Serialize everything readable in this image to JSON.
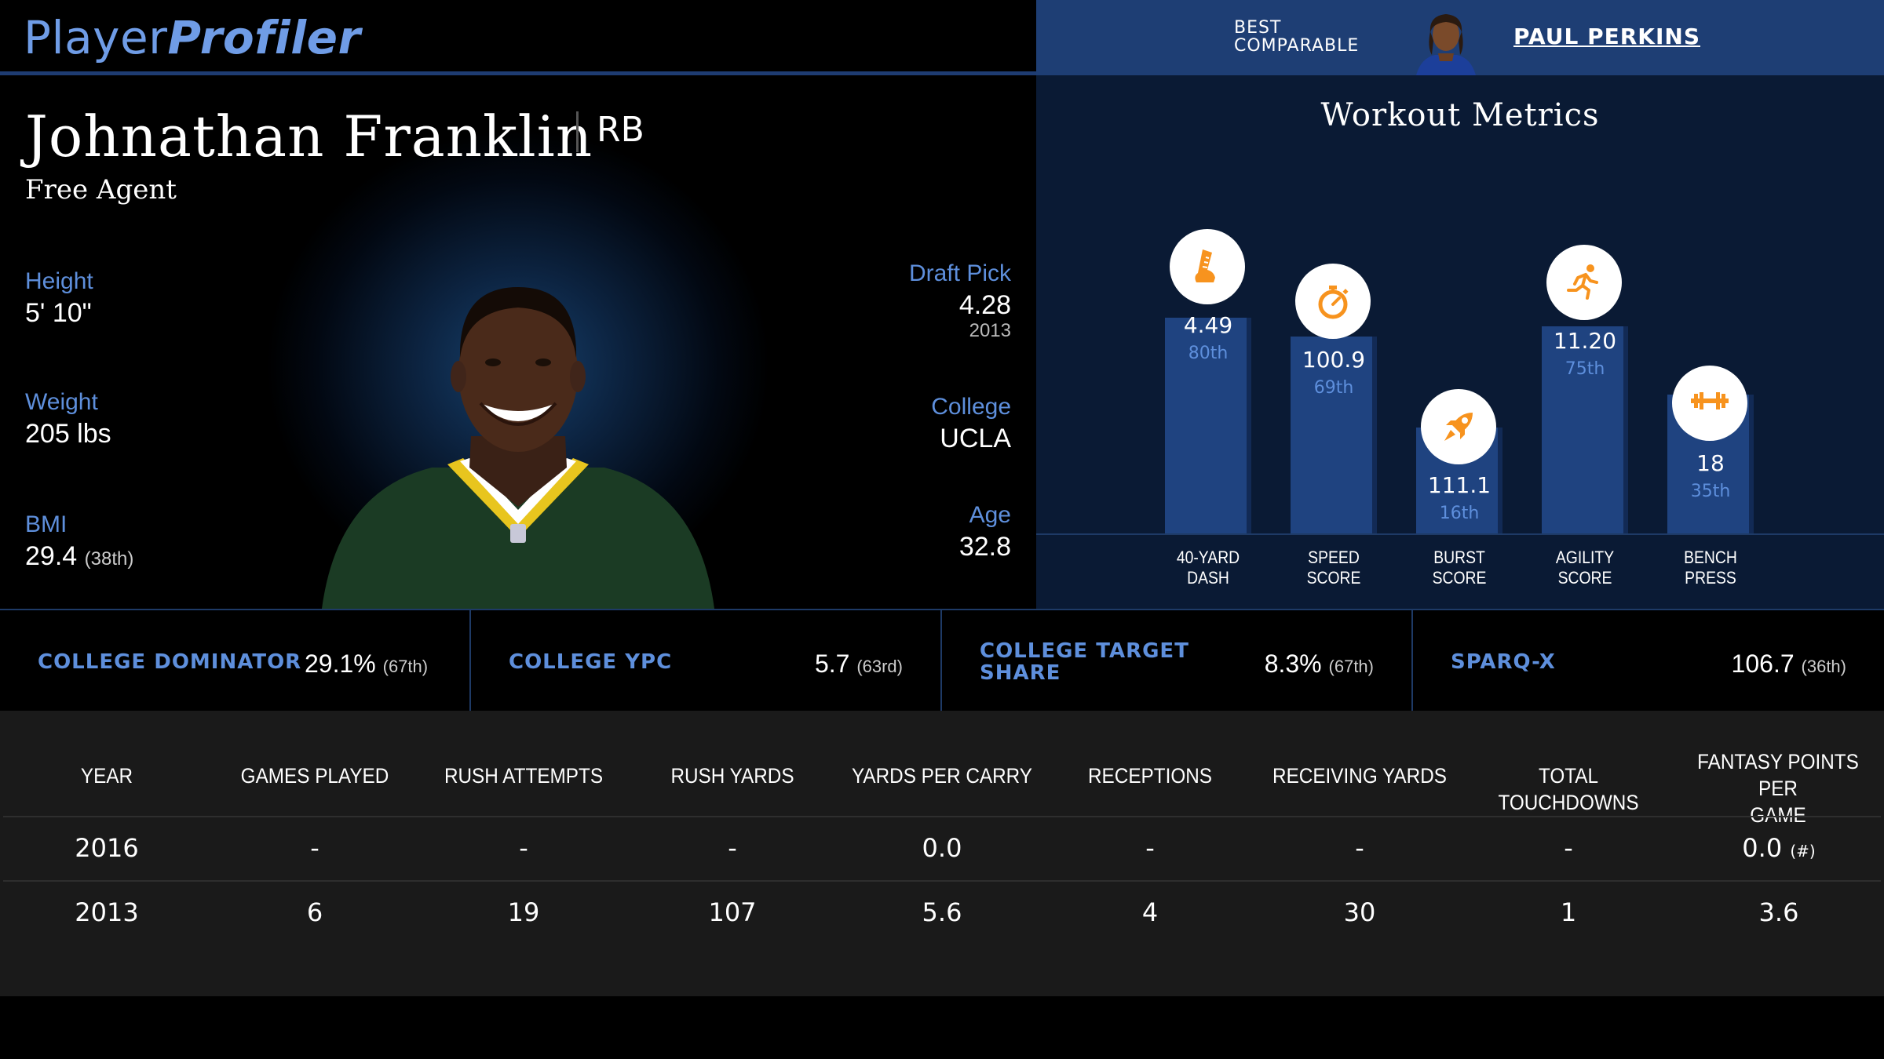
{
  "header": {
    "logo_part1": "Player",
    "logo_part2": "Profiler",
    "best_comparable_line1": "BEST",
    "best_comparable_line2": "COMPARABLE",
    "comparable_name": "PAUL PERKINS"
  },
  "player": {
    "name": "Johnathan Franklin",
    "position": "RB",
    "team": "Free Agent",
    "height_label": "Height",
    "height_value": "5' 10\"",
    "weight_label": "Weight",
    "weight_value": "205 lbs",
    "bmi_label": "BMI",
    "bmi_value": "29.4",
    "bmi_rank": "(38th)",
    "draft_label": "Draft Pick",
    "draft_value": "4.28",
    "draft_year": "2013",
    "college_label": "College",
    "college_value": "UCLA",
    "age_label": "Age",
    "age_value": "32.8"
  },
  "workout": {
    "title": "Workout Metrics",
    "items": [
      {
        "label1": "40-YARD",
        "label2": "DASH",
        "value": "4.49",
        "pct": "80th",
        "percentile": 80,
        "icon": "running-shoe-icon"
      },
      {
        "label1": "SPEED",
        "label2": "SCORE",
        "value": "100.9",
        "pct": "69th",
        "percentile": 69,
        "icon": "stopwatch-icon"
      },
      {
        "label1": "BURST",
        "label2": "SCORE",
        "value": "111.1",
        "pct": "16th",
        "percentile": 16,
        "icon": "rocket-icon"
      },
      {
        "label1": "AGILITY",
        "label2": "SCORE",
        "value": "11.20",
        "pct": "75th",
        "percentile": 75,
        "icon": "running-man-icon"
      },
      {
        "label1": "BENCH",
        "label2": "PRESS",
        "value": "18",
        "pct": "35th",
        "percentile": 35,
        "icon": "dumbbell-icon"
      }
    ],
    "accent_color": "#f7931e"
  },
  "metrics": [
    {
      "label_line1": "COLLEGE DOMINATOR",
      "label_line2": "",
      "value": "29.1%",
      "rank": "(67th)"
    },
    {
      "label_line1": "COLLEGE YPC",
      "label_line2": "",
      "value": "5.7",
      "rank": "(63rd)"
    },
    {
      "label_line1": "COLLEGE TARGET",
      "label_line2": "SHARE",
      "value": "8.3%",
      "rank": "(67th)"
    },
    {
      "label_line1": "SPARQ-X",
      "label_line2": "",
      "value": "106.7",
      "rank": "(36th)"
    }
  ],
  "table": {
    "headers": [
      "YEAR",
      "GAMES PLAYED",
      "RUSH ATTEMPTS",
      "RUSH YARDS",
      "YARDS PER CARRY",
      "RECEPTIONS",
      "RECEIVING YARDS",
      "TOTAL TOUCHDOWNS",
      "FANTASY POINTS PER",
      "GAME"
    ],
    "rows": [
      [
        "2016",
        "-",
        "-",
        "-",
        "0.0",
        "-",
        "-",
        "-",
        "0.0",
        "(#)"
      ],
      [
        "2013",
        "6",
        "19",
        "107",
        "5.6",
        "4",
        "30",
        "1",
        "3.6",
        ""
      ]
    ]
  },
  "colors": {
    "accent_blue": "#5e8fdc",
    "header_blue": "#1e3e74",
    "bar_blue": "#1f4380",
    "icon_orange": "#f7931e"
  }
}
